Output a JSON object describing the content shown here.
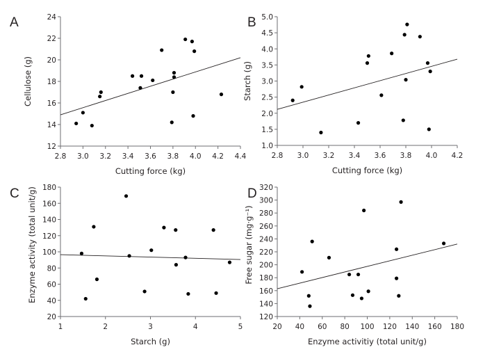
{
  "chart_data": [
    {
      "panel": "A",
      "type": "scatter",
      "xlabel": "Cutting force (kg)",
      "ylabel": "Cellulose (g)",
      "xlim": [
        2.8,
        4.4
      ],
      "ylim": [
        12,
        24
      ],
      "xticks": [
        "2.8",
        "3.0",
        "3.2",
        "3.4",
        "3.6",
        "3.8",
        "4.0",
        "4.2",
        "4.4"
      ],
      "yticks": [
        "12",
        "14",
        "16",
        "18",
        "20",
        "22",
        "24"
      ],
      "x": [
        2.94,
        3.0,
        3.08,
        3.15,
        3.16,
        3.44,
        3.51,
        3.52,
        3.62,
        3.7,
        3.79,
        3.8,
        3.81,
        3.81,
        3.91,
        3.97,
        3.98,
        3.99,
        4.23
      ],
      "y": [
        14.1,
        15.1,
        13.9,
        16.6,
        17.0,
        18.5,
        17.4,
        18.5,
        18.1,
        20.9,
        14.2,
        17.0,
        18.8,
        18.4,
        21.9,
        21.7,
        14.8,
        20.8,
        16.8
      ],
      "fit": {
        "x": [
          2.8,
          4.4
        ],
        "y": [
          14.9,
          20.2
        ]
      }
    },
    {
      "panel": "B",
      "type": "scatter",
      "xlabel": "Cutting force (kg)",
      "ylabel": "Starch (g)",
      "xlim": [
        2.8,
        4.2
      ],
      "ylim": [
        1.0,
        5.0
      ],
      "xticks": [
        "2.8",
        "3.0",
        "3.2",
        "3.4",
        "3.6",
        "3.8",
        "4.0",
        "4.2"
      ],
      "yticks": [
        "1.0",
        "1.5",
        "2.0",
        "2.5",
        "3.0",
        "3.5",
        "4.0",
        "4.5",
        "5.0"
      ],
      "x": [
        2.92,
        2.99,
        3.14,
        3.43,
        3.5,
        3.51,
        3.61,
        3.69,
        3.78,
        3.79,
        3.8,
        3.81,
        3.91,
        3.97,
        3.98,
        3.99
      ],
      "y": [
        2.4,
        2.82,
        1.4,
        1.7,
        3.56,
        3.78,
        2.56,
        3.86,
        1.78,
        4.44,
        3.04,
        4.76,
        4.38,
        3.56,
        1.5,
        3.3
      ],
      "fit": {
        "x": [
          2.8,
          4.2
        ],
        "y": [
          2.12,
          3.68
        ]
      }
    },
    {
      "panel": "C",
      "type": "scatter",
      "xlabel": "Starch (g)",
      "ylabel": "Enzyme activity (total unit/g)",
      "xlim": [
        1,
        5
      ],
      "ylim": [
        20,
        180
      ],
      "xticks": [
        "1",
        "2",
        "3",
        "4",
        "5"
      ],
      "yticks": [
        "20",
        "40",
        "60",
        "80",
        "100",
        "120",
        "140",
        "160",
        "180"
      ],
      "x": [
        1.47,
        1.56,
        1.74,
        1.81,
        2.46,
        2.53,
        2.87,
        3.02,
        3.3,
        3.56,
        3.57,
        3.78,
        3.84,
        4.4,
        4.46,
        4.76
      ],
      "y": [
        98,
        42,
        131,
        66,
        169,
        95,
        51,
        102,
        130,
        127,
        84,
        93,
        48,
        127,
        49,
        87
      ],
      "fit": {
        "x": [
          1,
          5
        ],
        "y": [
          96.5,
          90.5
        ]
      }
    },
    {
      "panel": "D",
      "type": "scatter",
      "xlabel": "Enzyme activitiy (total unit/g)",
      "ylabel": "Free sugar (mg·g⁻¹)",
      "xlim": [
        20,
        180
      ],
      "ylim": [
        120,
        320
      ],
      "xticks": [
        "20",
        "40",
        "60",
        "80",
        "100",
        "120",
        "140",
        "160",
        "180"
      ],
      "yticks": [
        "120",
        "140",
        "160",
        "180",
        "200",
        "220",
        "240",
        "260",
        "280",
        "300",
        "320"
      ],
      "x": [
        42,
        48,
        49,
        51,
        66,
        84,
        87,
        92,
        95,
        97,
        101,
        126,
        126,
        128,
        130,
        168
      ],
      "y": [
        189,
        152,
        136,
        236,
        211,
        185,
        153,
        185,
        148,
        284,
        159,
        224,
        179,
        152,
        297,
        233
      ],
      "fit": {
        "x": [
          20,
          180
        ],
        "y": [
          163,
          232
        ]
      }
    }
  ]
}
